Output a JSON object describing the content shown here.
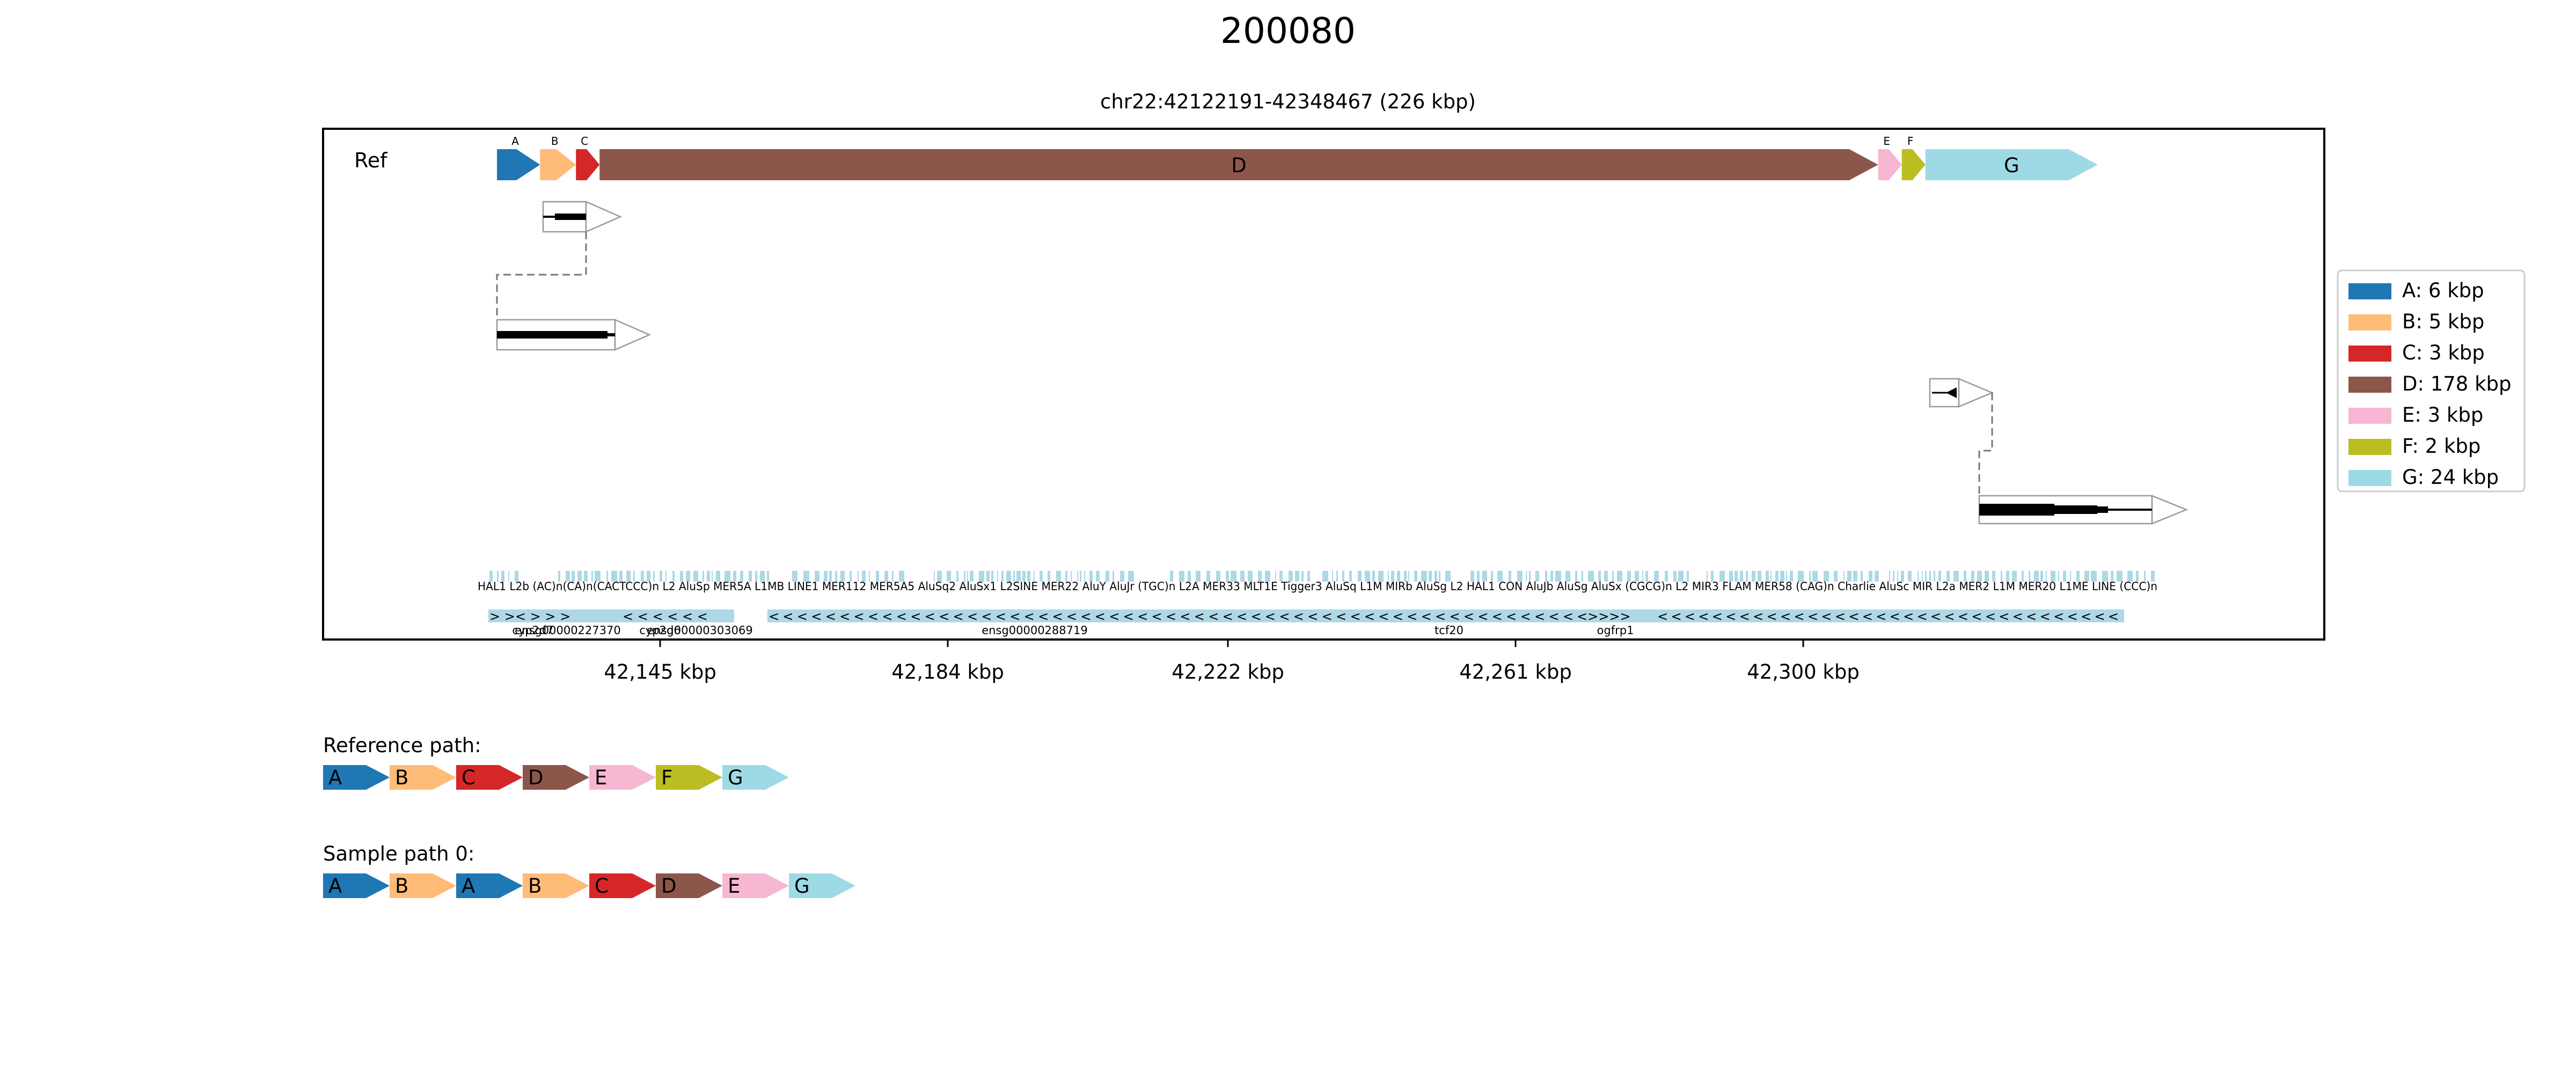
{
  "figure": {
    "title": "200080",
    "subtitle": "chr22:42122191-42348467 (226 kbp)",
    "track_label": "Ref"
  },
  "colors": {
    "A": "#1f77b4",
    "B": "#ffbb78",
    "C": "#d62728",
    "D": "#8c564b",
    "E": "#f7b6d2",
    "F": "#bcbd22",
    "G": "#9edae5",
    "repeat": "#add8e6"
  },
  "segments": [
    {
      "id": "A",
      "size_kbp": 6,
      "legend": "A: 6 kbp"
    },
    {
      "id": "B",
      "size_kbp": 5,
      "legend": "B: 5 kbp"
    },
    {
      "id": "C",
      "size_kbp": 3,
      "legend": "C: 3 kbp"
    },
    {
      "id": "D",
      "size_kbp": 178,
      "legend": "D: 178 kbp"
    },
    {
      "id": "E",
      "size_kbp": 3,
      "legend": "E: 3 kbp"
    },
    {
      "id": "F",
      "size_kbp": 2,
      "legend": "F: 2 kbp"
    },
    {
      "id": "G",
      "size_kbp": 24,
      "legend": "G: 24 kbp"
    }
  ],
  "x_ticks": [
    "42,145 kbp",
    "42,184 kbp",
    "42,222 kbp",
    "42,261 kbp",
    "42,300 kbp"
  ],
  "repeat_labels_text": "HAL1 L2b (AC)n(CA)n(CACTCCC)n L2 AluSp MER5A L1MB LINE1 MER112 MER5A5 AluSq2 AluSx1 L2SINE MER22 AluY AluJr (TGC)n L2A MER33 MLT1E Tigger3 AluSq L1M MIRb AluSg L2 HAL1 CON AluJb AluSg AluSx (CGCG)n L2 MIR3 FLAM MER58 (CAG)n Charlie AluSc MIR L2a MER2 L1M MER20 L1ME LINE (CCC)n",
  "genes": [
    {
      "name": "ensg00000227370"
    },
    {
      "name": "cyp2d7"
    },
    {
      "name": "ensg00000303069"
    },
    {
      "name": "cyp2d6"
    },
    {
      "name": "ensg00000288719"
    },
    {
      "name": "tcf20"
    },
    {
      "name": "ogfrp1"
    }
  ],
  "paths": [
    {
      "label": "Reference path:",
      "segments": [
        "A",
        "B",
        "C",
        "D",
        "E",
        "F",
        "G"
      ]
    },
    {
      "label": "Sample path 0:",
      "segments": [
        "A",
        "B",
        "A",
        "B",
        "C",
        "D",
        "E",
        "G"
      ]
    }
  ]
}
